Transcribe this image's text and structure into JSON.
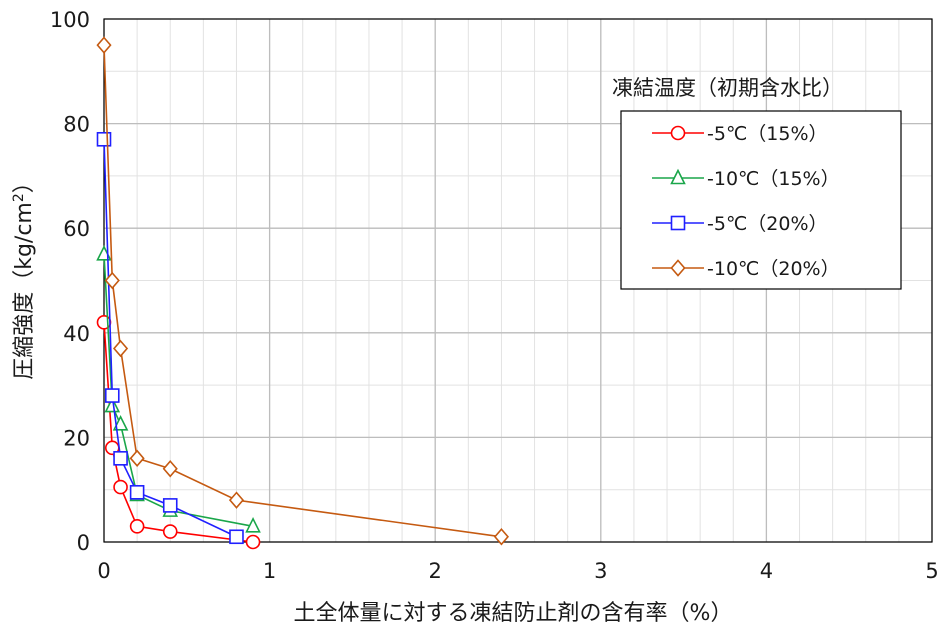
{
  "chart_data": {
    "type": "line",
    "xlabel": "土全体量に対する凍結防止剤の含有率（%）",
    "ylabel": "圧縮強度（kg/cm",
    "ylabel_sup": "2",
    "ylabel_end": "）",
    "xlim": [
      0,
      5
    ],
    "ylim": [
      0,
      100
    ],
    "xticks": [
      "0",
      "1",
      "2",
      "3",
      "4",
      "5"
    ],
    "yticks": [
      "0",
      "20",
      "40",
      "60",
      "80",
      "100"
    ],
    "x_minor_step": 0.2,
    "y_minor_step": 10,
    "grid": true,
    "legend_title": "凍結温度（初期含水比）",
    "legend_position": "top-right",
    "series": [
      {
        "name": "-5℃（15%）",
        "color": "#ff0000",
        "marker": "circle",
        "x": [
          0,
          0.05,
          0.1,
          0.2,
          0.4,
          0.9
        ],
        "y": [
          42,
          18,
          10.5,
          3,
          2,
          0
        ]
      },
      {
        "name": "-10℃（15%）",
        "color": "#1aa64a",
        "marker": "triangle",
        "x": [
          0,
          0.05,
          0.1,
          0.2,
          0.4,
          0.9
        ],
        "y": [
          55,
          26,
          22.5,
          9,
          6,
          3
        ]
      },
      {
        "name": "-5℃（20%）",
        "color": "#2020ff",
        "marker": "square",
        "x": [
          0,
          0.05,
          0.1,
          0.2,
          0.4,
          0.8
        ],
        "y": [
          77,
          28,
          16,
          9.5,
          7,
          1
        ]
      },
      {
        "name": "-10℃（20%）",
        "color": "#c55a11",
        "marker": "diamond",
        "x": [
          0,
          0.05,
          0.1,
          0.2,
          0.4,
          0.8,
          2.4
        ],
        "y": [
          95,
          50,
          37,
          16,
          14,
          8,
          1
        ]
      }
    ]
  }
}
